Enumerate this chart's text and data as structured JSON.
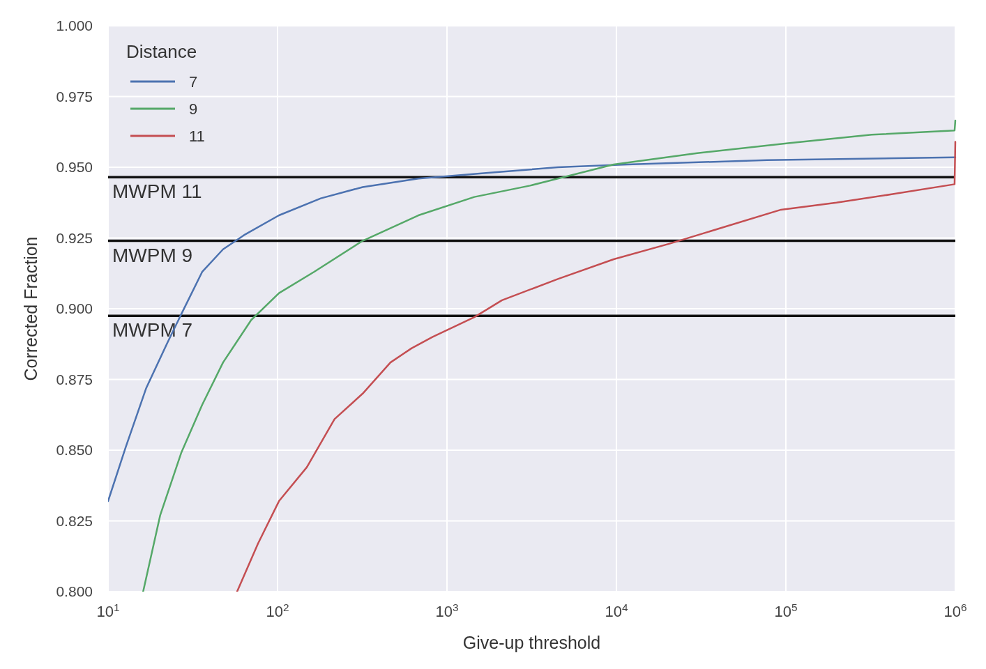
{
  "chart_data": {
    "type": "line",
    "xlabel": "Give-up threshold",
    "ylabel": "Corrected Fraction",
    "legend_title": "Distance",
    "log": "x",
    "grid": true,
    "legend": "top left",
    "line_style": "solid",
    "xlim": [
      10,
      1000000
    ],
    "xticks": [
      {
        "value": 10,
        "label": "10$^{1}$"
      },
      {
        "value": 100,
        "label": "10$^{2}$"
      },
      {
        "value": 1000,
        "label": "10$^{3}$"
      },
      {
        "value": 10000,
        "label": "10$^{4}$"
      },
      {
        "value": 100000,
        "label": "10$^{5}$"
      },
      {
        "value": 1000000,
        "label": "10$^{6}$"
      }
    ],
    "ylim": [
      0.8,
      1.0
    ],
    "yticks": [
      {
        "value": 0.8,
        "label": "0.800"
      },
      {
        "value": 0.825,
        "label": "0.825"
      },
      {
        "value": 0.85,
        "label": "0.850"
      },
      {
        "value": 0.875,
        "label": "0.875"
      },
      {
        "value": 0.9,
        "label": "0.900"
      },
      {
        "value": 0.925,
        "label": "0.925"
      },
      {
        "value": 0.95,
        "label": "0.950"
      },
      {
        "value": 0.975,
        "label": "0.975"
      },
      {
        "value": 1.0,
        "label": "1.000"
      }
    ],
    "series": [
      {
        "name": "7",
        "color": "#4c72b0",
        "x": [
          10,
          12.7,
          16.8,
          22.4,
          27,
          35.9,
          47.7,
          63.4,
          102,
          180,
          318,
          678,
          1750,
          4510,
          11600,
          77400,
          1000000
        ],
        "values": [
          0.832,
          0.851,
          0.872,
          0.888,
          0.898,
          0.913,
          0.921,
          0.926,
          0.933,
          0.939,
          0.943,
          0.946,
          0.948,
          0.95,
          0.951,
          0.9525,
          0.9535
        ]
      },
      {
        "name": "9",
        "color": "#55a868",
        "x": [
          16.1,
          20.3,
          27,
          35.9,
          47.7,
          69.9,
          102,
          164,
          318,
          678,
          1450,
          3090,
          9640,
          30000,
          103000,
          321000,
          990000,
          1000000
        ],
        "values": [
          0.8,
          0.827,
          0.849,
          0.866,
          0.881,
          0.896,
          0.9055,
          0.913,
          0.924,
          0.933,
          0.9395,
          0.9435,
          0.951,
          0.955,
          0.9585,
          0.9615,
          0.963,
          0.9665
        ]
      },
      {
        "name": "11",
        "color": "#c44e52",
        "x": [
          57.7,
          76.7,
          102,
          149,
          217,
          318,
          464,
          617,
          820,
          1450,
          2110,
          4510,
          9640,
          20600,
          43900,
          93600,
          199000,
          427000,
          990000,
          1000000
        ],
        "values": [
          0.8,
          0.817,
          0.832,
          0.844,
          0.861,
          0.87,
          0.881,
          0.886,
          0.89,
          0.897,
          0.903,
          0.9105,
          0.9175,
          0.923,
          0.929,
          0.935,
          0.9375,
          0.9405,
          0.944,
          0.959
        ]
      }
    ],
    "ref_lines": [
      {
        "axis": "y",
        "value": 0.9465,
        "label": "MWPM 11",
        "color": "#111111"
      },
      {
        "axis": "y",
        "value": 0.924,
        "label": "MWPM 9",
        "color": "#111111"
      },
      {
        "axis": "y",
        "value": 0.8975,
        "label": "MWPM 7",
        "color": "#111111"
      }
    ]
  }
}
